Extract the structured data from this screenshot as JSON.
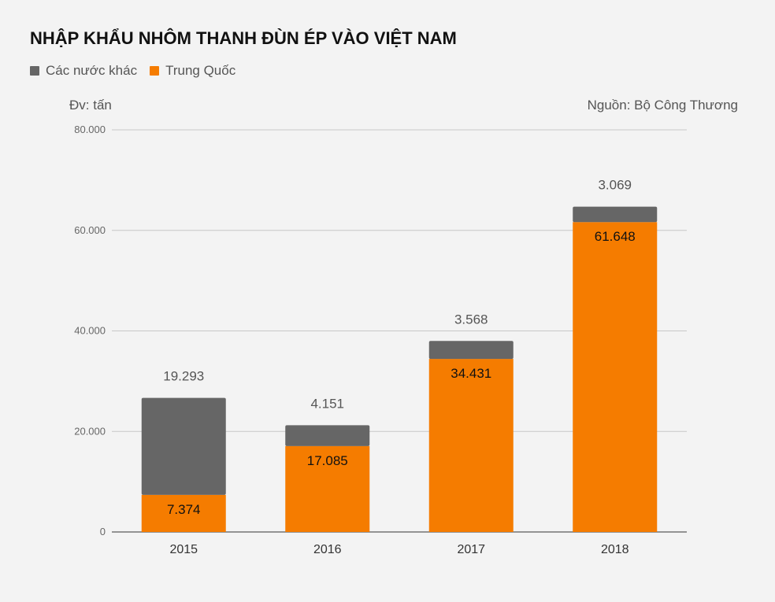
{
  "chart_data": {
    "type": "bar",
    "stacked": true,
    "title": "NHẬP KHẨU NHÔM THANH ĐÙN ÉP VÀO VIỆT NAM",
    "unit_label": "Đv: tấn",
    "source": "Nguồn: Bộ Công Thương",
    "categories": [
      "2015",
      "2016",
      "2017",
      "2018"
    ],
    "series": [
      {
        "name": "Trung Quốc",
        "color": "#f57c00",
        "values": [
          7374,
          17085,
          34431,
          61648
        ],
        "labels": [
          "7.374",
          "17.085",
          "34.431",
          "61.648"
        ]
      },
      {
        "name": "Các nước khác",
        "color": "#666666",
        "values": [
          19293,
          4151,
          3568,
          3069
        ],
        "labels": [
          "19.293",
          "4.151",
          "3.568",
          "3.069"
        ]
      }
    ],
    "legend_order": [
      "Các nước khác",
      "Trung Quốc"
    ],
    "legend_position": "top-left",
    "ylim": [
      0,
      80000
    ],
    "yticks": [
      0,
      20000,
      40000,
      60000,
      80000
    ],
    "ytick_labels": [
      "0",
      "20.000",
      "40.000",
      "60.000",
      "80.000"
    ],
    "grid": true
  }
}
